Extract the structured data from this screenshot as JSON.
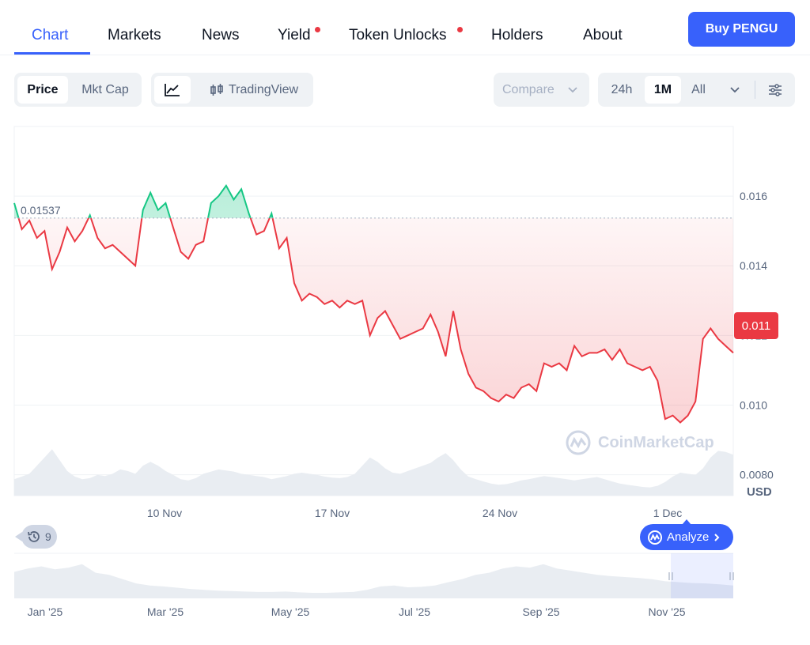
{
  "nav": {
    "tabs": [
      {
        "label": "Chart",
        "active": true
      },
      {
        "label": "Markets"
      },
      {
        "label": "News"
      },
      {
        "label": "Yield",
        "dot": true
      },
      {
        "label": "Token Unlocks",
        "dot": true
      },
      {
        "label": "Holders"
      },
      {
        "label": "About"
      }
    ],
    "buy_label": "Buy PENGU"
  },
  "toolbar": {
    "price_label": "Price",
    "mktcap_label": "Mkt Cap",
    "tradingview_label": "TradingView",
    "compare_label": "Compare",
    "range_24h": "24h",
    "range_1m": "1M",
    "range_all": "All",
    "selected_range": "1M"
  },
  "chart_data": {
    "type": "line",
    "title": "",
    "currency": "USD",
    "y_ticks": [
      "0.016",
      "0.014",
      "0.012",
      "0.010",
      "0.0080"
    ],
    "ylim": [
      0.0074,
      0.018
    ],
    "x_ticks": [
      "10 Nov",
      "17 Nov",
      "24 Nov",
      "1 Dec"
    ],
    "reference_price": "0.01537",
    "reference_value": 0.01537,
    "current_price": "0.011",
    "series": [
      {
        "values": [
          0.0158,
          0.01505,
          0.0153,
          0.0148,
          0.015,
          0.0139,
          0.0144,
          0.0151,
          0.0147,
          0.015,
          0.01545,
          0.0148,
          0.0145,
          0.0146,
          0.0144,
          0.0142,
          0.014,
          0.0156,
          0.0161,
          0.0156,
          0.0158,
          0.0151,
          0.0144,
          0.0142,
          0.0146,
          0.0147,
          0.0158,
          0.016,
          0.0163,
          0.0159,
          0.0162,
          0.0155,
          0.0149,
          0.015,
          0.0155,
          0.0145,
          0.0148,
          0.0135,
          0.013,
          0.0132,
          0.0131,
          0.0129,
          0.013,
          0.0128,
          0.013,
          0.0129,
          0.013,
          0.012,
          0.0125,
          0.0127,
          0.0123,
          0.0119,
          0.012,
          0.0121,
          0.0122,
          0.0126,
          0.0121,
          0.0114,
          0.0127,
          0.0116,
          0.0109,
          0.0105,
          0.0104,
          0.0102,
          0.0101,
          0.0103,
          0.0102,
          0.0105,
          0.0106,
          0.0104,
          0.0112,
          0.0111,
          0.0112,
          0.011,
          0.0117,
          0.0114,
          0.0115,
          0.0115,
          0.0116,
          0.0113,
          0.0116,
          0.0112,
          0.0111,
          0.011,
          0.0111,
          0.0107,
          0.0096,
          0.0097,
          0.0095,
          0.0097,
          0.0101,
          0.0119,
          0.0122,
          0.0119,
          0.0117,
          0.0115
        ]
      }
    ],
    "volume": [
      0.3,
      0.35,
      0.4,
      0.55,
      0.7,
      0.85,
      0.65,
      0.45,
      0.35,
      0.3,
      0.32,
      0.38,
      0.36,
      0.4,
      0.48,
      0.45,
      0.4,
      0.55,
      0.62,
      0.55,
      0.45,
      0.38,
      0.3,
      0.28,
      0.32,
      0.4,
      0.44,
      0.48,
      0.46,
      0.44,
      0.4,
      0.38,
      0.36,
      0.34,
      0.3,
      0.33,
      0.36,
      0.4,
      0.42,
      0.4,
      0.38,
      0.35,
      0.33,
      0.32,
      0.34,
      0.4,
      0.55,
      0.7,
      0.62,
      0.5,
      0.42,
      0.4,
      0.45,
      0.5,
      0.55,
      0.6,
      0.7,
      0.78,
      0.65,
      0.48,
      0.35,
      0.3,
      0.26,
      0.22,
      0.2,
      0.21,
      0.24,
      0.28,
      0.3,
      0.33,
      0.36,
      0.34,
      0.32,
      0.3,
      0.28,
      0.3,
      0.32,
      0.34,
      0.3,
      0.26,
      0.22,
      0.2,
      0.18,
      0.16,
      0.15,
      0.18,
      0.25,
      0.35,
      0.42,
      0.4,
      0.38,
      0.5,
      0.7,
      0.82,
      0.8,
      0.75
    ]
  },
  "overview": {
    "x_ticks": [
      "Jan '25",
      "Mar '25",
      "May '25",
      "Jul '25",
      "Sep '25",
      "Nov '25"
    ],
    "values": [
      0.62,
      0.7,
      0.75,
      0.68,
      0.72,
      0.8,
      0.6,
      0.55,
      0.45,
      0.35,
      0.3,
      0.28,
      0.25,
      0.22,
      0.2,
      0.18,
      0.17,
      0.16,
      0.15,
      0.15,
      0.16,
      0.14,
      0.13,
      0.13,
      0.14,
      0.15,
      0.2,
      0.28,
      0.3,
      0.26,
      0.27,
      0.3,
      0.38,
      0.45,
      0.55,
      0.6,
      0.7,
      0.75,
      0.72,
      0.8,
      0.7,
      0.65,
      0.6,
      0.55,
      0.52,
      0.5,
      0.48,
      0.45,
      0.4,
      0.38,
      0.36,
      0.35,
      0.33,
      0.3
    ]
  },
  "badges": {
    "history_count": "9",
    "analyze_label": "Analyze",
    "watermark": "CoinMarketCap",
    "usd_label": "USD"
  },
  "colors": {
    "accent": "#3861fb",
    "up": "#16c784",
    "down": "#ea3943"
  }
}
